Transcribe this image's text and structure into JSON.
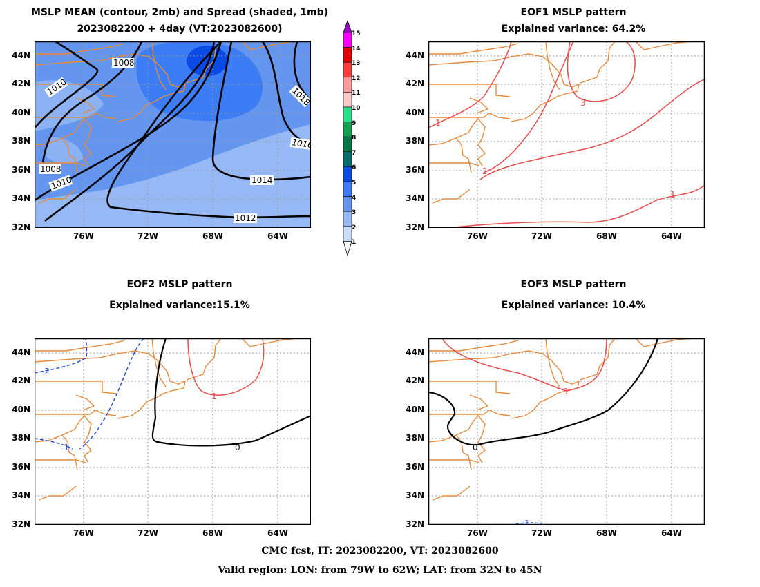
{
  "panels": {
    "mean": {
      "title1": "MSLP MEAN (contour, 2mb) and Spread (shaded, 1mb)",
      "title2": "2023082200 + 4day (VT:2023082600)",
      "contour_labels": [
        "1008",
        "1010",
        "1018",
        "1016",
        "1008",
        "1010",
        "1014",
        "1012"
      ]
    },
    "eof1": {
      "title1": "EOF1 MSLP pattern",
      "title2": "Explained variance: 64.2%",
      "contour_labels": [
        "1",
        "3",
        "2",
        "1"
      ]
    },
    "eof2": {
      "title1": "EOF2 MSLP pattern",
      "title2": "Explained variance:15.1%",
      "contour_labels": [
        "-2",
        "1",
        "0",
        "-1"
      ]
    },
    "eof3": {
      "title1": "EOF3 MSLP pattern",
      "title2": "Explained variance: 10.4%",
      "contour_labels": [
        "1",
        "0",
        "-1"
      ]
    }
  },
  "axes": {
    "lat_labels": [
      "44N",
      "42N",
      "40N",
      "38N",
      "36N",
      "34N",
      "32N"
    ],
    "lon_labels": [
      "76W",
      "72W",
      "68W",
      "64W"
    ]
  },
  "colorbar": {
    "levels": [
      "15",
      "14",
      "13",
      "12",
      "11",
      "10",
      "9",
      "8",
      "7",
      "6",
      "5",
      "4",
      "3",
      "2",
      "1"
    ],
    "colors": {
      "lvl15": "#a000c8",
      "lvl14": "#ff00ff",
      "lvl13": "#e60000",
      "lvl12": "#ff3c3c",
      "lvl11": "#ff9a9a",
      "lvl10": "#ffc8c8",
      "lvl9": "#28e08c",
      "lvl8": "#14a050",
      "lvl7": "#007846",
      "lvl6": "#006e6e",
      "lvl5": "#0a4be6",
      "lvl4": "#3c7df5",
      "lvl3": "#6496f0",
      "lvl2": "#96b9f5",
      "lvl1": "#c8dcfa"
    }
  },
  "colors": {
    "coast": "#e68a3c",
    "positive_contour": "#e84c4c",
    "negative_contour": "#2850dc",
    "zero_contour": "#000000",
    "mean_contour": "#000000"
  },
  "footer": {
    "line1": "CMC fcst, IT: 2023082200, VT: 2023082600",
    "line2": "Valid region: LON: from 79W to 62W; LAT: from 32N to 45N"
  }
}
